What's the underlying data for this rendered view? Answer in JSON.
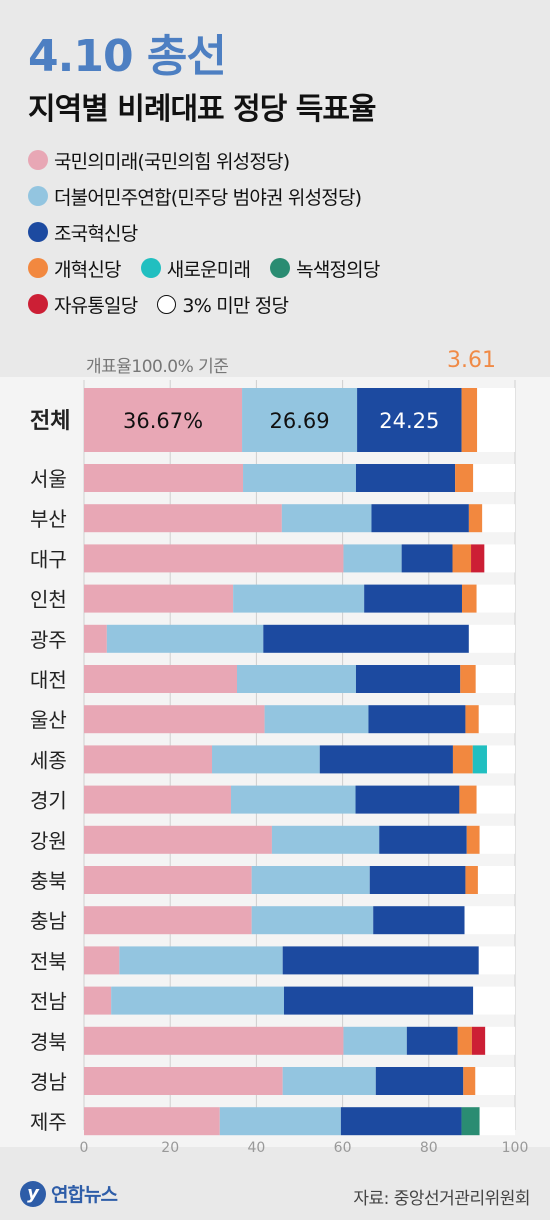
{
  "header": {
    "title": "4.10 총선",
    "subtitle": "지역별 비례대표 정당 득표율"
  },
  "legend": [
    {
      "label": "국민의미래(국민의힘 위성정당)",
      "color": "#e8a7b5"
    },
    {
      "label": "더불어민주연합(민주당 범야권 위성정당)",
      "color": "#93c5e0"
    },
    {
      "label": "조국혁신당",
      "color": "#1c4aa0"
    },
    {
      "label": "개혁신당",
      "color": "#f2883f"
    },
    {
      "label": "새로운미래",
      "color": "#21bfc0"
    },
    {
      "label": "녹색정의당",
      "color": "#2a8c72"
    },
    {
      "label": "자유통일당",
      "color": "#cc1f35"
    },
    {
      "label": "3% 미만 정당",
      "color": "#ffffff"
    }
  ],
  "note": "개표율100.0% 기준",
  "others_label": "3.61",
  "chart_data": {
    "type": "bar",
    "orientation": "horizontal",
    "stacked": true,
    "xlim": [
      0,
      100
    ],
    "xticks": [
      0,
      20,
      40,
      60,
      80,
      100
    ],
    "categories": [
      "전체",
      "서울",
      "부산",
      "대구",
      "인천",
      "광주",
      "대전",
      "울산",
      "세종",
      "경기",
      "강원",
      "충북",
      "충남",
      "전북",
      "전남",
      "경북",
      "경남",
      "제주"
    ],
    "series": [
      {
        "name": "국민의미래(국민의힘 위성정당)",
        "color": "#e8a7b5",
        "values": [
          36.67,
          36.9,
          45.9,
          60.2,
          34.6,
          5.3,
          35.5,
          41.9,
          29.7,
          34.1,
          43.6,
          38.9,
          38.9,
          8.2,
          6.3,
          60.2,
          46.1,
          31.5
        ]
      },
      {
        "name": "더불어민주연합(민주당 범야권 위성정당)",
        "color": "#93c5e0",
        "values": [
          26.69,
          26.2,
          20.8,
          13.5,
          30.4,
          36.3,
          27.6,
          24.1,
          25.0,
          28.9,
          24.9,
          27.4,
          28.2,
          37.9,
          40.1,
          14.7,
          21.6,
          28.1
        ]
      },
      {
        "name": "조국혁신당",
        "color": "#1c4aa0",
        "values": [
          24.25,
          23.0,
          22.6,
          11.8,
          22.7,
          47.7,
          24.2,
          22.5,
          30.9,
          24.1,
          20.3,
          22.2,
          21.2,
          45.5,
          43.9,
          11.8,
          20.3,
          28.0
        ]
      },
      {
        "name": "개혁신당",
        "color": "#f2883f",
        "values": [
          3.61,
          4.2,
          3.1,
          4.3,
          3.4,
          0,
          3.6,
          3.1,
          4.6,
          4.0,
          3.0,
          2.9,
          0,
          0,
          0,
          3.3,
          2.8,
          0
        ]
      },
      {
        "name": "새로운미래",
        "color": "#21bfc0",
        "values": [
          0,
          0,
          0,
          0,
          0,
          0,
          0,
          0,
          3.3,
          0,
          0,
          0,
          0,
          0,
          0,
          0,
          0,
          0
        ]
      },
      {
        "name": "녹색정의당",
        "color": "#2a8c72",
        "values": [
          0,
          0,
          0,
          0,
          0,
          0,
          0,
          0,
          0,
          0,
          0,
          0,
          0,
          0,
          0,
          0,
          0,
          4.2
        ]
      },
      {
        "name": "자유통일당",
        "color": "#cc1f35",
        "values": [
          0,
          0,
          0,
          3.1,
          0,
          0,
          0,
          0,
          0,
          0,
          0,
          0,
          0,
          0,
          0,
          3.1,
          0,
          0
        ]
      },
      {
        "name": "3% 미만 정당",
        "color": "#ffffff",
        "values": [
          8.78,
          9.7,
          7.6,
          7.1,
          8.9,
          10.7,
          9.1,
          8.4,
          6.5,
          8.9,
          8.2,
          8.6,
          11.7,
          8.4,
          9.7,
          6.9,
          9.2,
          8.2
        ]
      }
    ],
    "data_labels": [
      {
        "category": "전체",
        "series": 0,
        "text": "36.67%"
      },
      {
        "category": "전체",
        "series": 1,
        "text": "26.69"
      },
      {
        "category": "전체",
        "series": 2,
        "text": "24.25"
      }
    ]
  },
  "footer": {
    "logo": "연합뉴스",
    "source": "자료: 중앙선거관리위원회"
  }
}
